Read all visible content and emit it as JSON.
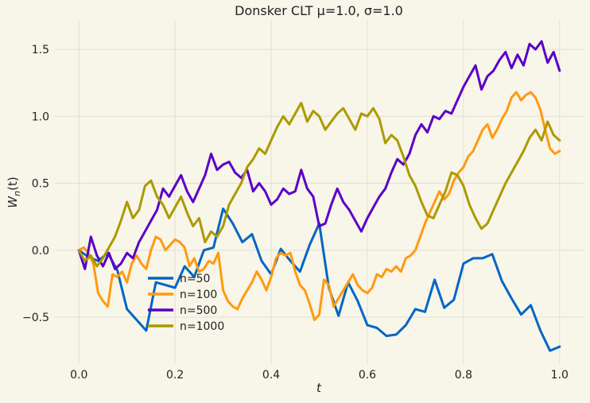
{
  "chart_data": {
    "type": "line",
    "title": "Donsker CLT μ=1.0, σ=1.0",
    "xlabel": "t",
    "ylabel": "Wₙ(t)",
    "ylabel_parts": {
      "base": "W",
      "sub": "n",
      "rest": "(t)"
    },
    "xlim": [
      -0.05,
      1.05
    ],
    "ylim": [
      -0.85,
      1.72
    ],
    "xticks": [
      0.0,
      0.2,
      0.4,
      0.6,
      0.8,
      1.0
    ],
    "xtick_labels": [
      "0.0",
      "0.2",
      "0.4",
      "0.6",
      "0.8",
      "1.0"
    ],
    "yticks": [
      -0.5,
      0.0,
      0.5,
      1.0,
      1.5
    ],
    "ytick_labels": [
      "−0.5",
      "0.0",
      "0.5",
      "1.0",
      "1.5"
    ],
    "grid": true,
    "legend_position": "lower-left",
    "colors": {
      "background": "#f8f5e9",
      "grid": "#e2dfd3"
    },
    "series": [
      {
        "name": "n=50",
        "color": "#0066c4",
        "x": [
          0,
          0.02,
          0.04,
          0.06,
          0.08,
          0.1,
          0.12,
          0.14,
          0.16,
          0.18,
          0.2,
          0.22,
          0.24,
          0.26,
          0.28,
          0.3,
          0.32,
          0.34,
          0.36,
          0.38,
          0.4,
          0.42,
          0.44,
          0.46,
          0.48,
          0.5,
          0.52,
          0.54,
          0.56,
          0.58,
          0.6,
          0.62,
          0.64,
          0.66,
          0.68,
          0.7,
          0.72,
          0.74,
          0.76,
          0.78,
          0.8,
          0.82,
          0.84,
          0.86,
          0.88,
          0.9,
          0.92,
          0.94,
          0.96,
          0.98,
          1.0
        ],
        "y": [
          0.0,
          -0.05,
          -0.08,
          -0.02,
          -0.15,
          -0.44,
          -0.52,
          -0.6,
          -0.24,
          -0.26,
          -0.28,
          -0.12,
          -0.2,
          0.0,
          0.02,
          0.31,
          0.2,
          0.06,
          0.12,
          -0.08,
          -0.18,
          0.01,
          -0.08,
          -0.16,
          0.04,
          0.2,
          -0.28,
          -0.49,
          -0.24,
          -0.38,
          -0.56,
          -0.58,
          -0.64,
          -0.63,
          -0.56,
          -0.44,
          -0.46,
          -0.22,
          -0.43,
          -0.37,
          -0.1,
          -0.06,
          -0.06,
          -0.03,
          -0.23,
          -0.36,
          -0.48,
          -0.41,
          -0.6,
          -0.75,
          -0.72
        ]
      },
      {
        "name": "n=100",
        "color": "#ff9a0e",
        "x": [
          0,
          0.01,
          0.02,
          0.03,
          0.04,
          0.05,
          0.06,
          0.07,
          0.08,
          0.09,
          0.1,
          0.11,
          0.12,
          0.13,
          0.14,
          0.15,
          0.16,
          0.17,
          0.18,
          0.19,
          0.2,
          0.21,
          0.22,
          0.23,
          0.24,
          0.25,
          0.26,
          0.27,
          0.28,
          0.29,
          0.3,
          0.31,
          0.32,
          0.33,
          0.34,
          0.35,
          0.36,
          0.37,
          0.38,
          0.39,
          0.4,
          0.41,
          0.42,
          0.43,
          0.44,
          0.45,
          0.46,
          0.47,
          0.48,
          0.49,
          0.5,
          0.51,
          0.52,
          0.53,
          0.54,
          0.55,
          0.56,
          0.57,
          0.58,
          0.59,
          0.6,
          0.61,
          0.62,
          0.63,
          0.64,
          0.65,
          0.66,
          0.67,
          0.68,
          0.69,
          0.7,
          0.71,
          0.72,
          0.73,
          0.74,
          0.75,
          0.76,
          0.77,
          0.78,
          0.79,
          0.8,
          0.81,
          0.82,
          0.83,
          0.84,
          0.85,
          0.86,
          0.87,
          0.88,
          0.89,
          0.9,
          0.91,
          0.92,
          0.93,
          0.94,
          0.95,
          0.96,
          0.97,
          0.98,
          0.99,
          1.0
        ],
        "y": [
          0.0,
          0.02,
          -0.02,
          -0.1,
          -0.32,
          -0.38,
          -0.42,
          -0.18,
          -0.2,
          -0.16,
          -0.24,
          -0.1,
          -0.04,
          -0.1,
          -0.14,
          0.0,
          0.1,
          0.08,
          0.0,
          0.04,
          0.08,
          0.06,
          0.02,
          -0.12,
          -0.06,
          -0.16,
          -0.14,
          -0.08,
          -0.1,
          -0.02,
          -0.3,
          -0.38,
          -0.42,
          -0.44,
          -0.36,
          -0.3,
          -0.24,
          -0.16,
          -0.22,
          -0.3,
          -0.2,
          -0.06,
          -0.02,
          -0.04,
          -0.02,
          -0.16,
          -0.26,
          -0.3,
          -0.4,
          -0.52,
          -0.48,
          -0.22,
          -0.26,
          -0.42,
          -0.36,
          -0.3,
          -0.24,
          -0.18,
          -0.26,
          -0.3,
          -0.32,
          -0.28,
          -0.18,
          -0.2,
          -0.14,
          -0.16,
          -0.12,
          -0.16,
          -0.06,
          -0.04,
          0.0,
          0.1,
          0.2,
          0.28,
          0.36,
          0.44,
          0.38,
          0.42,
          0.52,
          0.58,
          0.62,
          0.7,
          0.74,
          0.82,
          0.9,
          0.94,
          0.84,
          0.9,
          0.98,
          1.04,
          1.14,
          1.18,
          1.12,
          1.16,
          1.18,
          1.14,
          1.05,
          0.9,
          0.76,
          0.72,
          0.74
        ]
      },
      {
        "name": "n=500",
        "color": "#5a00c8",
        "x": [
          0,
          0.0125,
          0.025,
          0.0375,
          0.05,
          0.0625,
          0.075,
          0.0875,
          0.1,
          0.1125,
          0.125,
          0.1375,
          0.15,
          0.1625,
          0.175,
          0.1875,
          0.2,
          0.2125,
          0.225,
          0.2375,
          0.25,
          0.2625,
          0.275,
          0.2875,
          0.3,
          0.3125,
          0.325,
          0.3375,
          0.35,
          0.3625,
          0.375,
          0.3875,
          0.4,
          0.4125,
          0.425,
          0.4375,
          0.45,
          0.4625,
          0.475,
          0.4875,
          0.5,
          0.5125,
          0.525,
          0.5375,
          0.55,
          0.5625,
          0.575,
          0.5875,
          0.6,
          0.6125,
          0.625,
          0.6375,
          0.65,
          0.6625,
          0.675,
          0.6875,
          0.7,
          0.7125,
          0.725,
          0.7375,
          0.75,
          0.7625,
          0.775,
          0.7875,
          0.8,
          0.8125,
          0.825,
          0.8375,
          0.85,
          0.8625,
          0.875,
          0.8875,
          0.9,
          0.9125,
          0.925,
          0.9375,
          0.95,
          0.9625,
          0.975,
          0.9875,
          1.0
        ],
        "y": [
          0.0,
          -0.14,
          0.1,
          -0.04,
          -0.12,
          -0.02,
          -0.14,
          -0.1,
          -0.02,
          -0.06,
          0.06,
          0.14,
          0.22,
          0.3,
          0.46,
          0.4,
          0.48,
          0.56,
          0.44,
          0.36,
          0.46,
          0.56,
          0.72,
          0.6,
          0.64,
          0.66,
          0.58,
          0.54,
          0.6,
          0.44,
          0.5,
          0.44,
          0.34,
          0.38,
          0.46,
          0.42,
          0.44,
          0.6,
          0.46,
          0.4,
          0.18,
          0.2,
          0.34,
          0.46,
          0.36,
          0.3,
          0.22,
          0.14,
          0.24,
          0.32,
          0.4,
          0.46,
          0.58,
          0.68,
          0.64,
          0.72,
          0.86,
          0.94,
          0.88,
          1.0,
          0.98,
          1.04,
          1.02,
          1.12,
          1.22,
          1.3,
          1.38,
          1.2,
          1.3,
          1.34,
          1.42,
          1.48,
          1.36,
          1.46,
          1.38,
          1.54,
          1.5,
          1.56,
          1.4,
          1.48,
          1.34
        ]
      },
      {
        "name": "n=1000",
        "color": "#ab9a00",
        "x": [
          0,
          0.0125,
          0.025,
          0.0375,
          0.05,
          0.0625,
          0.075,
          0.0875,
          0.1,
          0.1125,
          0.125,
          0.1375,
          0.15,
          0.1625,
          0.175,
          0.1875,
          0.2,
          0.2125,
          0.225,
          0.2375,
          0.25,
          0.2625,
          0.275,
          0.2875,
          0.3,
          0.3125,
          0.325,
          0.3375,
          0.35,
          0.3625,
          0.375,
          0.3875,
          0.4,
          0.4125,
          0.425,
          0.4375,
          0.45,
          0.4625,
          0.475,
          0.4875,
          0.5,
          0.5125,
          0.525,
          0.5375,
          0.55,
          0.5625,
          0.575,
          0.5875,
          0.6,
          0.6125,
          0.625,
          0.6375,
          0.65,
          0.6625,
          0.675,
          0.6875,
          0.7,
          0.7125,
          0.725,
          0.7375,
          0.75,
          0.7625,
          0.775,
          0.7875,
          0.8,
          0.8125,
          0.825,
          0.8375,
          0.85,
          0.8625,
          0.875,
          0.8875,
          0.9,
          0.9125,
          0.925,
          0.9375,
          0.95,
          0.9625,
          0.975,
          0.9875,
          1.0
        ],
        "y": [
          0.0,
          -0.08,
          -0.04,
          -0.12,
          -0.06,
          0.02,
          0.1,
          0.22,
          0.36,
          0.24,
          0.3,
          0.48,
          0.52,
          0.4,
          0.34,
          0.24,
          0.32,
          0.4,
          0.28,
          0.18,
          0.24,
          0.06,
          0.14,
          0.1,
          0.18,
          0.34,
          0.42,
          0.5,
          0.62,
          0.68,
          0.76,
          0.72,
          0.82,
          0.92,
          1.0,
          0.94,
          1.02,
          1.1,
          0.96,
          1.04,
          1.0,
          0.9,
          0.96,
          1.02,
          1.06,
          0.98,
          0.9,
          1.02,
          1.0,
          1.06,
          0.98,
          0.8,
          0.86,
          0.82,
          0.7,
          0.56,
          0.48,
          0.36,
          0.26,
          0.24,
          0.34,
          0.44,
          0.58,
          0.56,
          0.48,
          0.34,
          0.24,
          0.16,
          0.2,
          0.3,
          0.4,
          0.5,
          0.58,
          0.66,
          0.74,
          0.84,
          0.9,
          0.82,
          0.96,
          0.86,
          0.82
        ]
      }
    ]
  }
}
